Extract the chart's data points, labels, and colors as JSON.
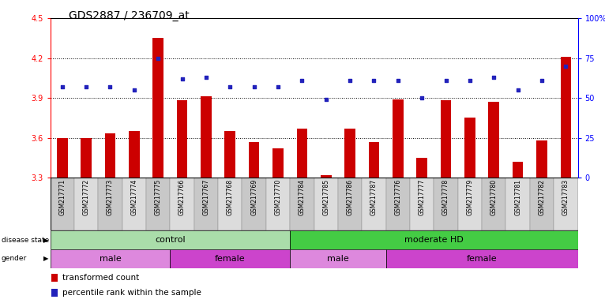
{
  "title": "GDS2887 / 236709_at",
  "samples": [
    "GSM217771",
    "GSM217772",
    "GSM217773",
    "GSM217774",
    "GSM217775",
    "GSM217766",
    "GSM217767",
    "GSM217768",
    "GSM217769",
    "GSM217770",
    "GSM217784",
    "GSM217785",
    "GSM217786",
    "GSM217787",
    "GSM217776",
    "GSM217777",
    "GSM217778",
    "GSM217779",
    "GSM217780",
    "GSM217781",
    "GSM217782",
    "GSM217783"
  ],
  "bar_values": [
    3.6,
    3.6,
    3.63,
    3.65,
    4.35,
    3.88,
    3.91,
    3.65,
    3.57,
    3.52,
    3.67,
    3.32,
    3.67,
    3.57,
    3.89,
    3.45,
    3.88,
    3.75,
    3.87,
    3.42,
    3.58,
    4.21
  ],
  "scatter_values": [
    57,
    57,
    57,
    55,
    75,
    62,
    63,
    57,
    57,
    57,
    61,
    49,
    61,
    61,
    61,
    50,
    61,
    61,
    63,
    55,
    61,
    70
  ],
  "ylim_left": [
    3.3,
    4.5
  ],
  "ylim_right": [
    0,
    100
  ],
  "yticks_left": [
    3.3,
    3.6,
    3.9,
    4.2,
    4.5
  ],
  "yticks_right": [
    0,
    25,
    50,
    75,
    100
  ],
  "ytick_labels_right": [
    "0",
    "25",
    "50",
    "75",
    "100%"
  ],
  "bar_color": "#cc0000",
  "scatter_color": "#2222bb",
  "disease_state_groups": [
    {
      "label": "control",
      "start": 0,
      "end": 10,
      "color": "#aaddaa"
    },
    {
      "label": "moderate HD",
      "start": 10,
      "end": 22,
      "color": "#44cc44"
    }
  ],
  "gender_groups": [
    {
      "label": "male",
      "start": 0,
      "end": 5,
      "color": "#dd88dd"
    },
    {
      "label": "female",
      "start": 5,
      "end": 10,
      "color": "#cc44cc"
    },
    {
      "label": "male",
      "start": 10,
      "end": 14,
      "color": "#dd88dd"
    },
    {
      "label": "female",
      "start": 14,
      "end": 22,
      "color": "#cc44cc"
    }
  ],
  "bar_width": 0.45,
  "title_fontsize": 10,
  "tick_fontsize": 7,
  "sample_fontsize": 5.5,
  "group_fontsize": 8,
  "legend_fontsize": 7.5
}
